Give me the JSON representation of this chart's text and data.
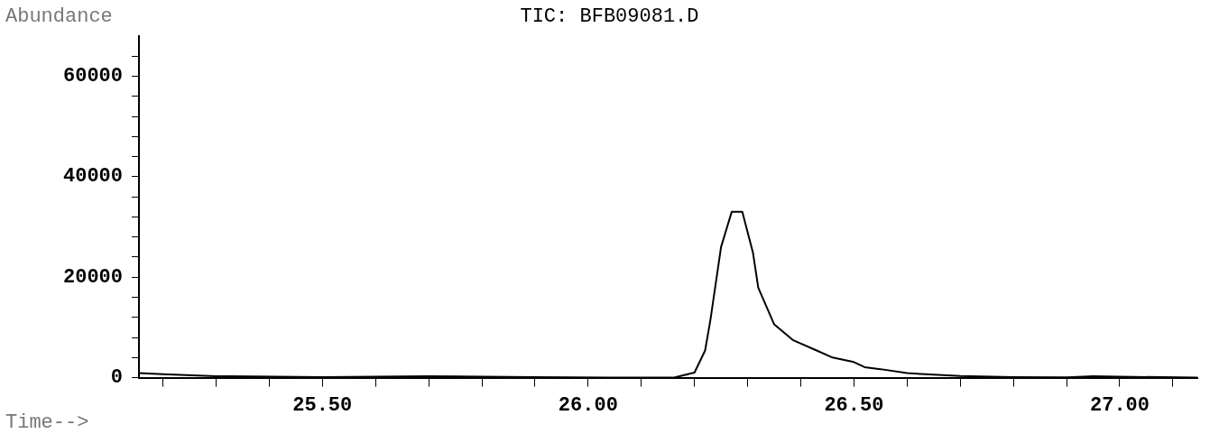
{
  "chart_data": {
    "type": "line",
    "title": "TIC: BFB09081.D",
    "ylabel": "Abundance",
    "xlabel": "Time-->",
    "x": [
      25.155,
      25.2,
      25.3,
      25.5,
      25.7,
      25.9,
      26.04,
      26.16,
      26.2,
      26.22,
      26.23,
      26.25,
      26.27,
      26.29,
      26.31,
      26.32,
      26.35,
      26.385,
      26.43,
      26.46,
      26.5,
      26.52,
      26.55,
      26.6,
      26.7,
      26.8,
      26.9,
      26.95,
      27.0,
      27.146
    ],
    "series": [
      {
        "color": "#000000",
        "values": [
          900,
          700,
          300,
          100,
          300,
          100,
          0,
          0,
          1000,
          5400,
          11500,
          26000,
          33000,
          33000,
          24900,
          17900,
          10600,
          7500,
          5400,
          4000,
          3100,
          2100,
          1700,
          900,
          350,
          100,
          50,
          300,
          200,
          0
        ]
      }
    ],
    "xlim": [
      25.155,
      27.146
    ],
    "xticks": [
      {
        "value": 25.2,
        "label": null
      },
      {
        "value": 25.3,
        "label": null
      },
      {
        "value": 25.4,
        "label": null
      },
      {
        "value": 25.5,
        "label": "25.50"
      },
      {
        "value": 25.6,
        "label": null
      },
      {
        "value": 25.7,
        "label": null
      },
      {
        "value": 25.8,
        "label": null
      },
      {
        "value": 25.9,
        "label": null
      },
      {
        "value": 26.0,
        "label": "26.00"
      },
      {
        "value": 26.1,
        "label": null
      },
      {
        "value": 26.2,
        "label": null
      },
      {
        "value": 26.3,
        "label": null
      },
      {
        "value": 26.4,
        "label": null
      },
      {
        "value": 26.5,
        "label": "26.50"
      },
      {
        "value": 26.6,
        "label": null
      },
      {
        "value": 26.7,
        "label": null
      },
      {
        "value": 26.8,
        "label": null
      },
      {
        "value": 26.9,
        "label": null
      },
      {
        "value": 27.0,
        "label": "27.00"
      },
      {
        "value": 27.1,
        "label": null
      }
    ],
    "ylim": [
      0,
      68000
    ],
    "yticks": [
      0,
      {
        "value": 4000,
        "label": null
      },
      {
        "value": 8000,
        "label": null
      },
      {
        "value": 12000,
        "label": null
      },
      {
        "value": 16000,
        "label": null
      },
      20000,
      {
        "value": 24000,
        "label": null
      },
      {
        "value": 28000,
        "label": null
      },
      {
        "value": 32000,
        "label": null
      },
      {
        "value": 36000,
        "label": null
      },
      40000,
      {
        "value": 44000,
        "label": null
      },
      {
        "value": 48000,
        "label": null
      },
      {
        "value": 52000,
        "label": null
      },
      {
        "value": 56000,
        "label": null
      },
      60000,
      {
        "value": 64000,
        "label": null
      }
    ],
    "grid": false,
    "legend": false,
    "marker": "none",
    "line_style": "solid"
  }
}
